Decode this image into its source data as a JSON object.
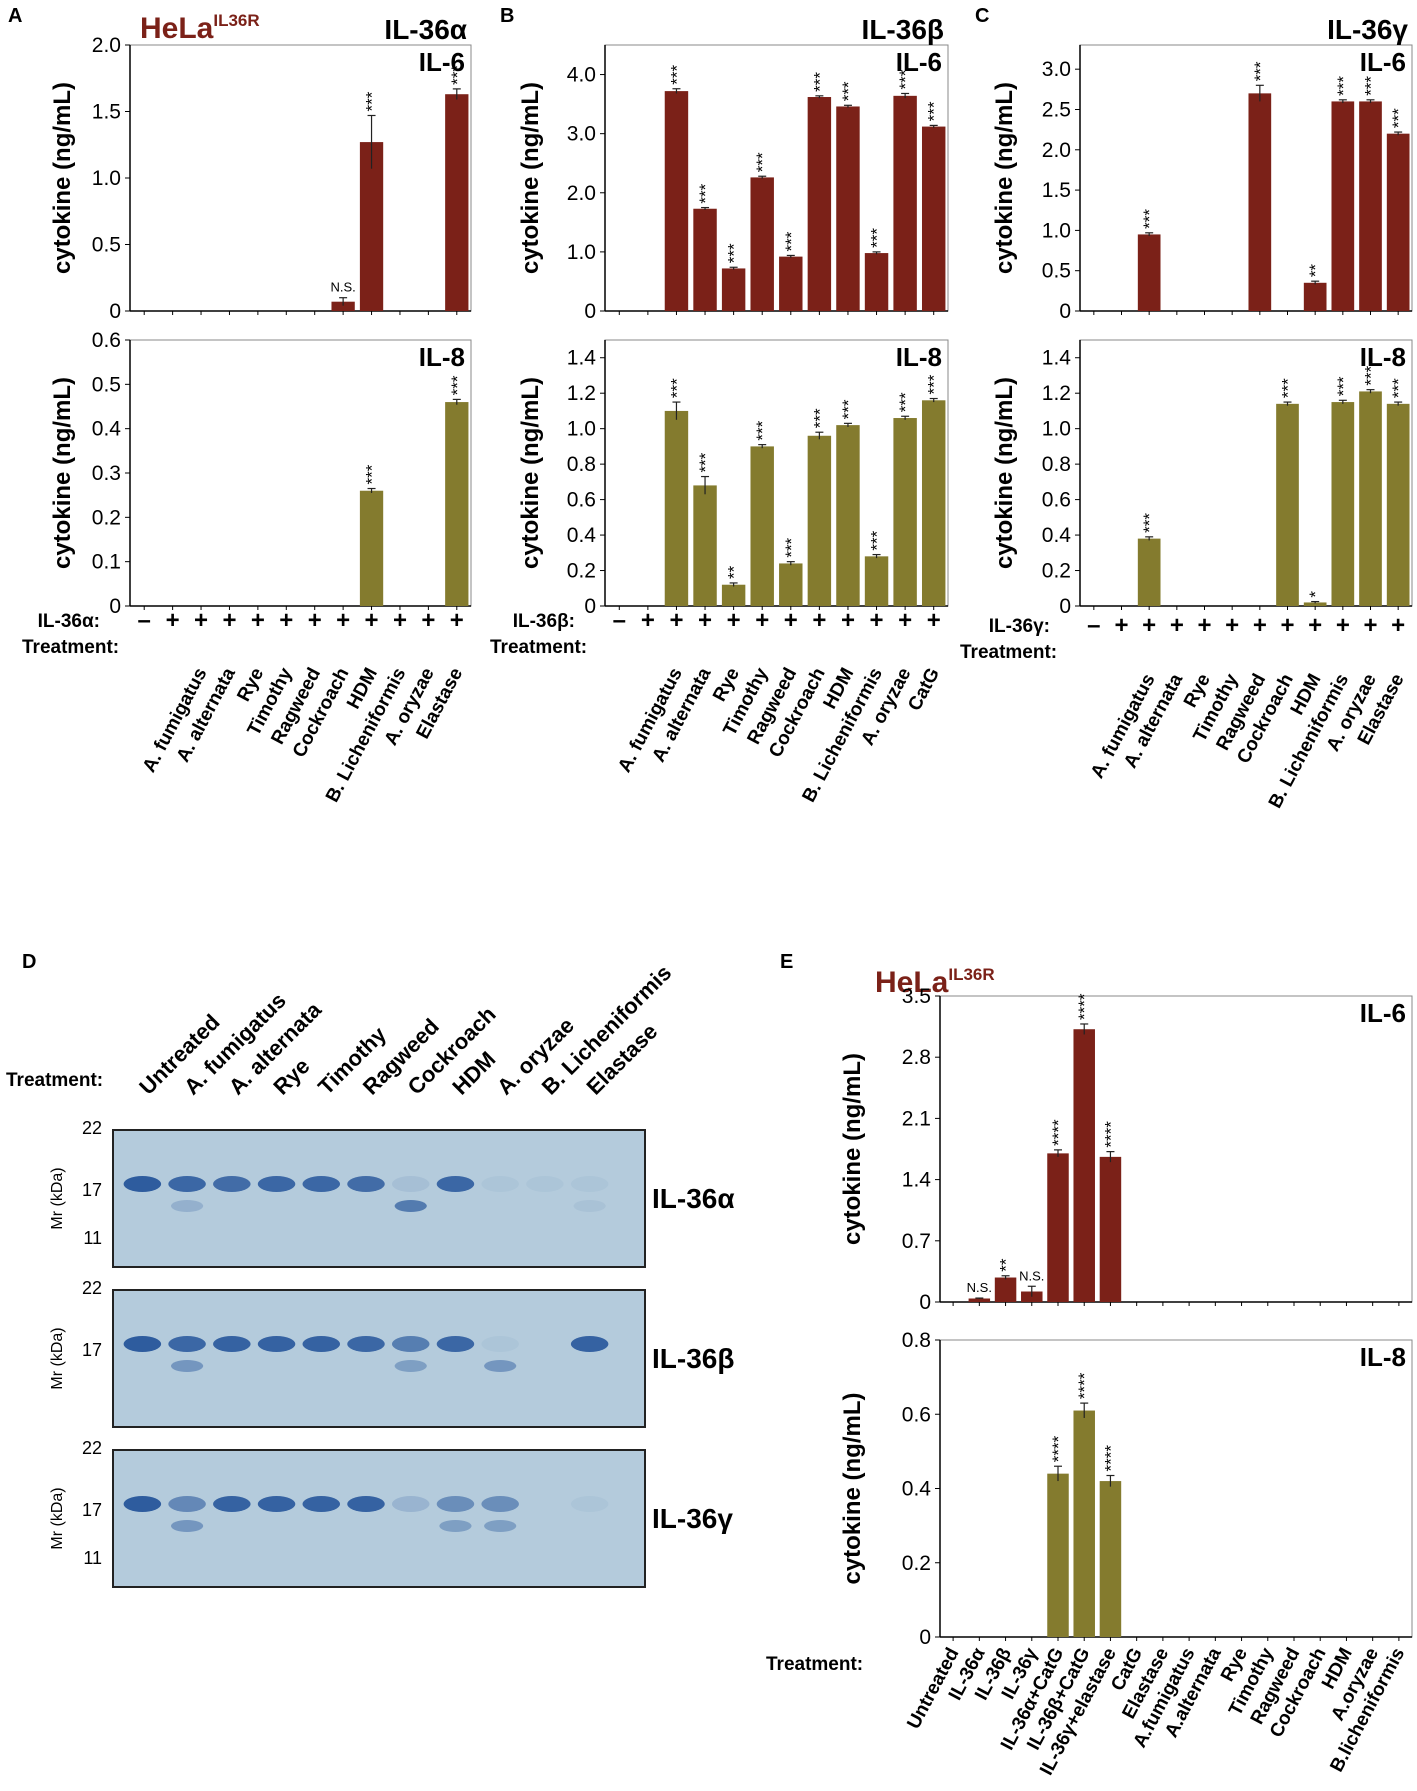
{
  "panel_labels": {
    "A": "A",
    "B": "B",
    "C": "C",
    "D": "D",
    "E": "E"
  },
  "hela": {
    "base": "HeLa",
    "sup": "IL36R"
  },
  "colors": {
    "il6": "#7B2118",
    "il8": "#847B2E",
    "axis": "#000000",
    "frame": "#888888",
    "hela": "#7B2118",
    "gel_bg": "#B4CBDC",
    "band": "#2E5C9E"
  },
  "common": {
    "ylabel": "cytokine (ng/mL)",
    "treatment_label": "Treatment:",
    "plus": "+",
    "minus": "–"
  },
  "chart_data": [
    {
      "id": "A-IL6",
      "type": "bar",
      "panel": "A",
      "title": "IL-36α",
      "subtitle": "IL-6",
      "ylabel": "cytokine (ng/mL)",
      "ylim": [
        0,
        2.0
      ],
      "yticks": [
        "0",
        "0.5",
        "1.0",
        "1.5",
        "2.0"
      ],
      "categories": [
        "",
        "",
        "A. fumigatus",
        "A. alternata",
        "Rye",
        "Timothy",
        "Ragweed",
        "Cockroach",
        "HDM",
        "B. Licheniformis",
        "A. oryzae",
        "Elastase"
      ],
      "values": [
        0,
        0,
        0,
        0,
        0,
        0,
        0,
        0.07,
        1.27,
        0,
        0,
        1.63
      ],
      "errors": [
        0,
        0,
        0,
        0,
        0,
        0,
        0,
        0.03,
        0.2,
        0,
        0,
        0.04
      ],
      "annotations": [
        "",
        "",
        "",
        "",
        "",
        "",
        "",
        "N.S.",
        "***",
        "",
        "",
        "***"
      ]
    },
    {
      "id": "A-IL8",
      "type": "bar",
      "panel": "A",
      "title": "",
      "subtitle": "IL-8",
      "ylabel": "cytokine (ng/mL)",
      "ylim": [
        0,
        0.6
      ],
      "yticks": [
        "0",
        "0.1",
        "0.2",
        "0.3",
        "0.4",
        "0.5",
        "0.6"
      ],
      "values": [
        0,
        0,
        0,
        0,
        0,
        0,
        0,
        0,
        0.26,
        0,
        0,
        0.46
      ],
      "errors": [
        0,
        0,
        0,
        0,
        0,
        0,
        0,
        0,
        0.005,
        0,
        0,
        0.006
      ],
      "annotations": [
        "",
        "",
        "",
        "",
        "",
        "",
        "",
        "",
        "***",
        "",
        "",
        "***"
      ],
      "xsign_label": "IL-36α:",
      "xsigns": [
        "–",
        "+",
        "+",
        "+",
        "+",
        "+",
        "+",
        "+",
        "+",
        "+",
        "+",
        "+"
      ]
    },
    {
      "id": "B-IL6",
      "type": "bar",
      "panel": "B",
      "title": "IL-36β",
      "subtitle": "IL-6",
      "ylabel": "cytokine (ng/mL)",
      "ylim": [
        0,
        4.5
      ],
      "yticks": [
        "0",
        "1.0",
        "2.0",
        "3.0",
        "4.0"
      ],
      "categories": [
        "",
        "",
        "A. fumigatus",
        "A. alternata",
        "Rye",
        "Timothy",
        "Ragweed",
        "Cockroach",
        "HDM",
        "B. Licheniformis",
        "A. oryzae",
        "CatG"
      ],
      "values": [
        0,
        0,
        3.72,
        1.73,
        0.72,
        2.26,
        0.92,
        3.62,
        3.46,
        0.98,
        3.64,
        3.12
      ],
      "errors": [
        0,
        0,
        0.04,
        0.02,
        0.02,
        0.02,
        0.02,
        0.02,
        0.02,
        0.02,
        0.04,
        0.02
      ],
      "annotations": [
        "",
        "",
        "***",
        "***",
        "***",
        "***",
        "***",
        "***",
        "***",
        "***",
        "***",
        "***"
      ]
    },
    {
      "id": "B-IL8",
      "type": "bar",
      "panel": "B",
      "title": "",
      "subtitle": "IL-8",
      "ylabel": "cytokine (ng/mL)",
      "ylim": [
        0,
        1.5
      ],
      "yticks": [
        "0",
        "0.2",
        "0.4",
        "0.6",
        "0.8",
        "1.0",
        "1.2",
        "1.4"
      ],
      "values": [
        0,
        0,
        1.1,
        0.68,
        0.12,
        0.9,
        0.24,
        0.96,
        1.02,
        0.28,
        1.06,
        1.16
      ],
      "errors": [
        0,
        0,
        0.05,
        0.05,
        0.01,
        0.01,
        0.01,
        0.02,
        0.01,
        0.01,
        0.01,
        0.01
      ],
      "annotations": [
        "",
        "",
        "***",
        "***",
        "**",
        "***",
        "***",
        "***",
        "***",
        "***",
        "***",
        "***"
      ],
      "xsign_label": "IL-36β:",
      "xsigns": [
        "–",
        "+",
        "+",
        "+",
        "+",
        "+",
        "+",
        "+",
        "+",
        "+",
        "+",
        "+"
      ]
    },
    {
      "id": "C-IL6",
      "type": "bar",
      "panel": "C",
      "title": "IL-36γ",
      "subtitle": "IL-6",
      "ylabel": "cytokine (ng/mL)",
      "ylim": [
        0,
        3.3
      ],
      "yticks": [
        "0",
        "0.5",
        "1.0",
        "1.5",
        "2.0",
        "2.5",
        "3.0"
      ],
      "categories": [
        "",
        "",
        "A. fumigatus",
        "A. alternata",
        "Rye",
        "Timothy",
        "Ragweed",
        "Cockroach",
        "HDM",
        "B. Licheniformis",
        "A. oryzae",
        "Elastase"
      ],
      "values": [
        0,
        0,
        0.95,
        0,
        0,
        0,
        2.7,
        0,
        0.35,
        2.6,
        2.6,
        2.2
      ],
      "errors": [
        0,
        0,
        0.02,
        0,
        0,
        0,
        0.1,
        0,
        0.02,
        0.02,
        0.02,
        0.02
      ],
      "annotations": [
        "",
        "",
        "***",
        "",
        "",
        "",
        "***",
        "",
        "**",
        "***",
        "***",
        "***"
      ]
    },
    {
      "id": "C-IL8",
      "type": "bar",
      "panel": "C",
      "title": "",
      "subtitle": "IL-8",
      "ylabel": "cytokine (ng/mL)",
      "ylim": [
        0,
        1.5
      ],
      "yticks": [
        "0",
        "0.2",
        "0.4",
        "0.6",
        "0.8",
        "1.0",
        "1.2",
        "1.4"
      ],
      "values": [
        0,
        0,
        0.38,
        0,
        0,
        0,
        0,
        1.14,
        0.02,
        1.15,
        1.21,
        1.14
      ],
      "errors": [
        0,
        0,
        0.01,
        0,
        0,
        0,
        0,
        0.01,
        0.005,
        0.01,
        0.01,
        0.01
      ],
      "annotations": [
        "",
        "",
        "***",
        "",
        "",
        "",
        "",
        "***",
        "*",
        "***",
        "***",
        "***"
      ],
      "xsign_label": "IL-36γ:",
      "xsigns": [
        "–",
        "+",
        "+",
        "+",
        "+",
        "+",
        "+",
        "+",
        "+",
        "+",
        "+",
        "+"
      ]
    },
    {
      "id": "E-IL6",
      "type": "bar",
      "panel": "E",
      "title": "",
      "subtitle": "IL-6",
      "ylabel": "cytokine (ng/mL)",
      "ylim": [
        0,
        3.5
      ],
      "yticks": [
        "0",
        "0.7",
        "1.4",
        "2.1",
        "2.8",
        "3.5"
      ],
      "categories": [
        "Untreated",
        "IL-36α",
        "IL-36β",
        "IL-36γ",
        "IL-36α+CatG",
        "IL-36β+CatG",
        "IL-36γ+elastase",
        "CatG",
        "Elastase",
        "A.fumigatus",
        "A.alternata",
        "Rye",
        "Timothy",
        "Ragweed",
        "Cockroach",
        "HDM",
        "A.oryzae",
        "B.licheniformis"
      ],
      "values": [
        0,
        0.04,
        0.28,
        0.12,
        1.7,
        3.12,
        1.66,
        0,
        0,
        0,
        0,
        0,
        0,
        0,
        0,
        0,
        0,
        0
      ],
      "errors": [
        0,
        0.005,
        0.02,
        0.06,
        0.04,
        0.06,
        0.06,
        0,
        0,
        0,
        0,
        0,
        0,
        0,
        0,
        0,
        0,
        0
      ],
      "annotations": [
        "",
        "N.S.",
        "**",
        "N.S.",
        "****",
        "****",
        "****",
        "",
        "",
        "",
        "",
        "",
        "",
        "",
        "",
        "",
        "",
        ""
      ]
    },
    {
      "id": "E-IL8",
      "type": "bar",
      "panel": "E",
      "title": "",
      "subtitle": "IL-8",
      "ylabel": "cytokine (ng/mL)",
      "ylim": [
        0,
        0.8
      ],
      "yticks": [
        "0",
        "0.2",
        "0.4",
        "0.6",
        "0.8"
      ],
      "values": [
        0,
        0,
        0,
        0,
        0.44,
        0.61,
        0.42,
        0,
        0,
        0,
        0,
        0,
        0,
        0,
        0,
        0,
        0,
        0
      ],
      "errors": [
        0,
        0,
        0,
        0,
        0.02,
        0.02,
        0.015,
        0,
        0,
        0,
        0,
        0,
        0,
        0,
        0,
        0,
        0,
        0
      ],
      "annotations": [
        "",
        "",
        "",
        "",
        "****",
        "****",
        "****",
        "",
        "",
        "",
        "",
        "",
        "",
        "",
        "",
        "",
        "",
        ""
      ]
    },
    {
      "id": "D-gel",
      "type": "table",
      "panel": "D",
      "treatment_label": "Treatment:",
      "lanes": [
        "Untreated",
        "A. fumigatus",
        "A. alternata",
        "Rye",
        "Timothy",
        "Ragweed",
        "Cockroach",
        "HDM",
        "A. oryzae",
        "B. Licheniformis",
        "Elastase"
      ],
      "mw_label": "Mr (kDa)",
      "blots": [
        {
          "name": "IL-36α",
          "markers": [
            "22",
            "17",
            "11"
          ],
          "main_band": [
            1,
            0.9,
            0.85,
            0.9,
            0.9,
            0.85,
            0.1,
            0.9,
            0.05,
            0.05,
            0.05
          ],
          "lower_band": [
            0,
            0.3,
            0,
            0,
            0,
            0,
            0.9,
            0,
            0,
            0,
            0.1
          ]
        },
        {
          "name": "IL-36β",
          "markers": [
            "22",
            "17"
          ],
          "main_band": [
            1,
            0.9,
            0.95,
            0.95,
            0.95,
            0.9,
            0.7,
            0.9,
            0.05,
            0,
            0.95
          ],
          "lower_band": [
            0,
            0.6,
            0,
            0,
            0,
            0,
            0.5,
            0,
            0.6,
            0,
            0
          ]
        },
        {
          "name": "IL-36γ",
          "markers": [
            "22",
            "17",
            "11"
          ],
          "main_band": [
            1,
            0.6,
            0.95,
            0.95,
            0.95,
            0.95,
            0.2,
            0.55,
            0.55,
            0,
            0.05
          ],
          "lower_band": [
            0,
            0.6,
            0,
            0,
            0,
            0,
            0,
            0.5,
            0.5,
            0,
            0
          ]
        }
      ]
    }
  ]
}
